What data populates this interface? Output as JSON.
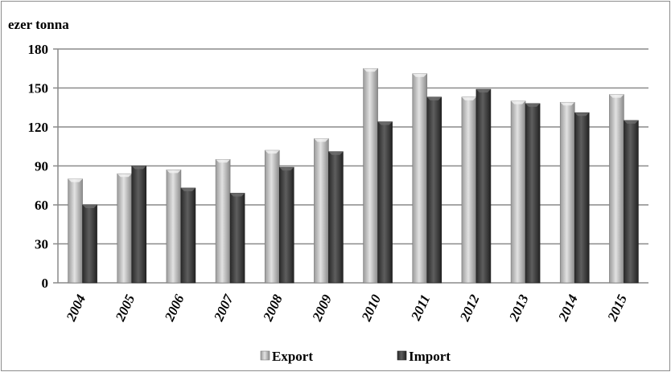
{
  "chart_data": {
    "type": "bar",
    "ylabel": "ezer tonna",
    "ylim": [
      0,
      180
    ],
    "yticks": [
      0,
      30,
      60,
      90,
      120,
      150,
      180
    ],
    "grid": true,
    "legend_position": "bottom",
    "categories": [
      "2004",
      "2005",
      "2006",
      "2007",
      "2008",
      "2009",
      "2010",
      "2011",
      "2012",
      "2013",
      "2014",
      "2015"
    ],
    "series": [
      {
        "name": "Export",
        "color": "#b8b8b8",
        "values": [
          80,
          84,
          87,
          95,
          102,
          111,
          165,
          161,
          143,
          140,
          139,
          145
        ]
      },
      {
        "name": "Import",
        "color": "#404040",
        "values": [
          60,
          90,
          73,
          69,
          89,
          101,
          124,
          143,
          149,
          138,
          131,
          125
        ]
      }
    ]
  }
}
